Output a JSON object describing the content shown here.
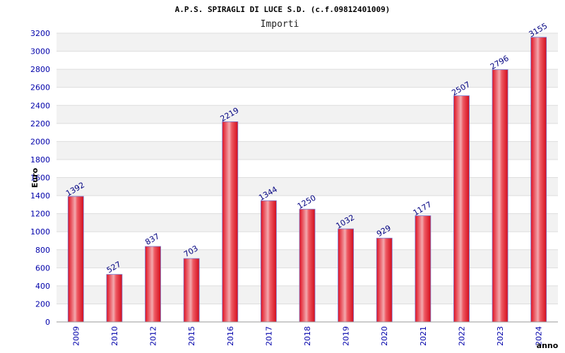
{
  "chart_data": {
    "type": "bar",
    "title": "A.P.S. SPIRAGLI DI LUCE S.D. (c.f.09812401009)",
    "subtitle": "Importi",
    "xlabel": "anno",
    "ylabel": "Euro",
    "categories": [
      "2009",
      "2010",
      "2012",
      "2015",
      "2016",
      "2017",
      "2018",
      "2019",
      "2020",
      "2021",
      "2022",
      "2023",
      "2024"
    ],
    "values": [
      1392,
      527,
      837,
      703,
      2219,
      1344,
      1250,
      1032,
      929,
      1177,
      2507,
      2796,
      3155
    ],
    "ylim": [
      0,
      3200
    ],
    "ytick_step": 200,
    "grid": true,
    "legend": "none",
    "colors": {
      "bar": "#e8202a",
      "bar_highlight": "#f4b0b4",
      "band_light": "#ffffff",
      "band_dark": "#f2f2f2",
      "tick_text": "#0000aa",
      "data_label": "#000080"
    }
  }
}
